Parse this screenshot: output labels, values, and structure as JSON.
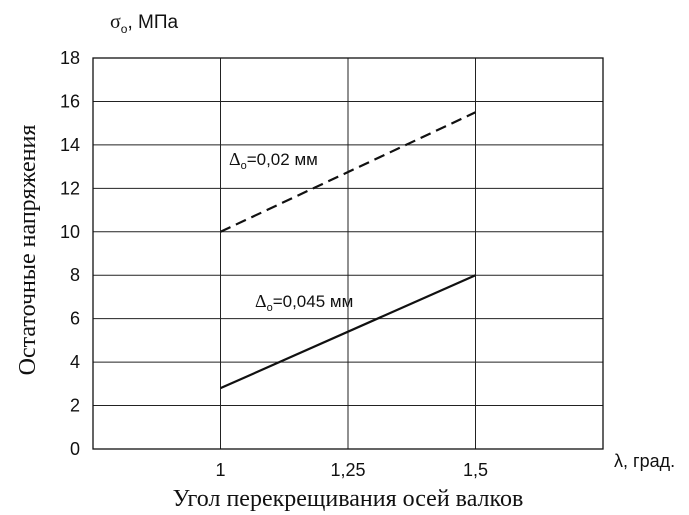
{
  "chart_data": {
    "type": "line",
    "y_unit_label": {
      "symbol": "σ",
      "subscript": "o",
      "unit": ", МПа"
    },
    "ylabel": "Остаточные напряжения",
    "x_unit_label": "λ, град.",
    "xlabel": "Угол перекрещивания осей валков",
    "x_ticks": [
      1,
      1.25,
      1.5
    ],
    "x_tick_labels": [
      "1",
      "1,25",
      "1,5"
    ],
    "xlim": [
      0.75,
      1.75
    ],
    "y_ticks": [
      0,
      2,
      4,
      6,
      8,
      10,
      12,
      14,
      16,
      18
    ],
    "y_tick_labels": [
      "0",
      "2",
      "4",
      "6",
      "8",
      "10",
      "12",
      "14",
      "16",
      "18"
    ],
    "ylim": [
      0,
      18
    ],
    "grid": true,
    "series": [
      {
        "label_symbol": "Δ",
        "label_subscript": "o",
        "label_value": "=0,02 мм",
        "line_style": "dashed",
        "color": "#111111",
        "x": [
          1,
          1.5
        ],
        "y": [
          10,
          15.5
        ]
      },
      {
        "label_symbol": "Δ",
        "label_subscript": "o",
        "label_value": "=0,045 мм",
        "line_style": "solid",
        "color": "#111111",
        "x": [
          1,
          1.5
        ],
        "y": [
          2.8,
          8
        ]
      }
    ]
  }
}
